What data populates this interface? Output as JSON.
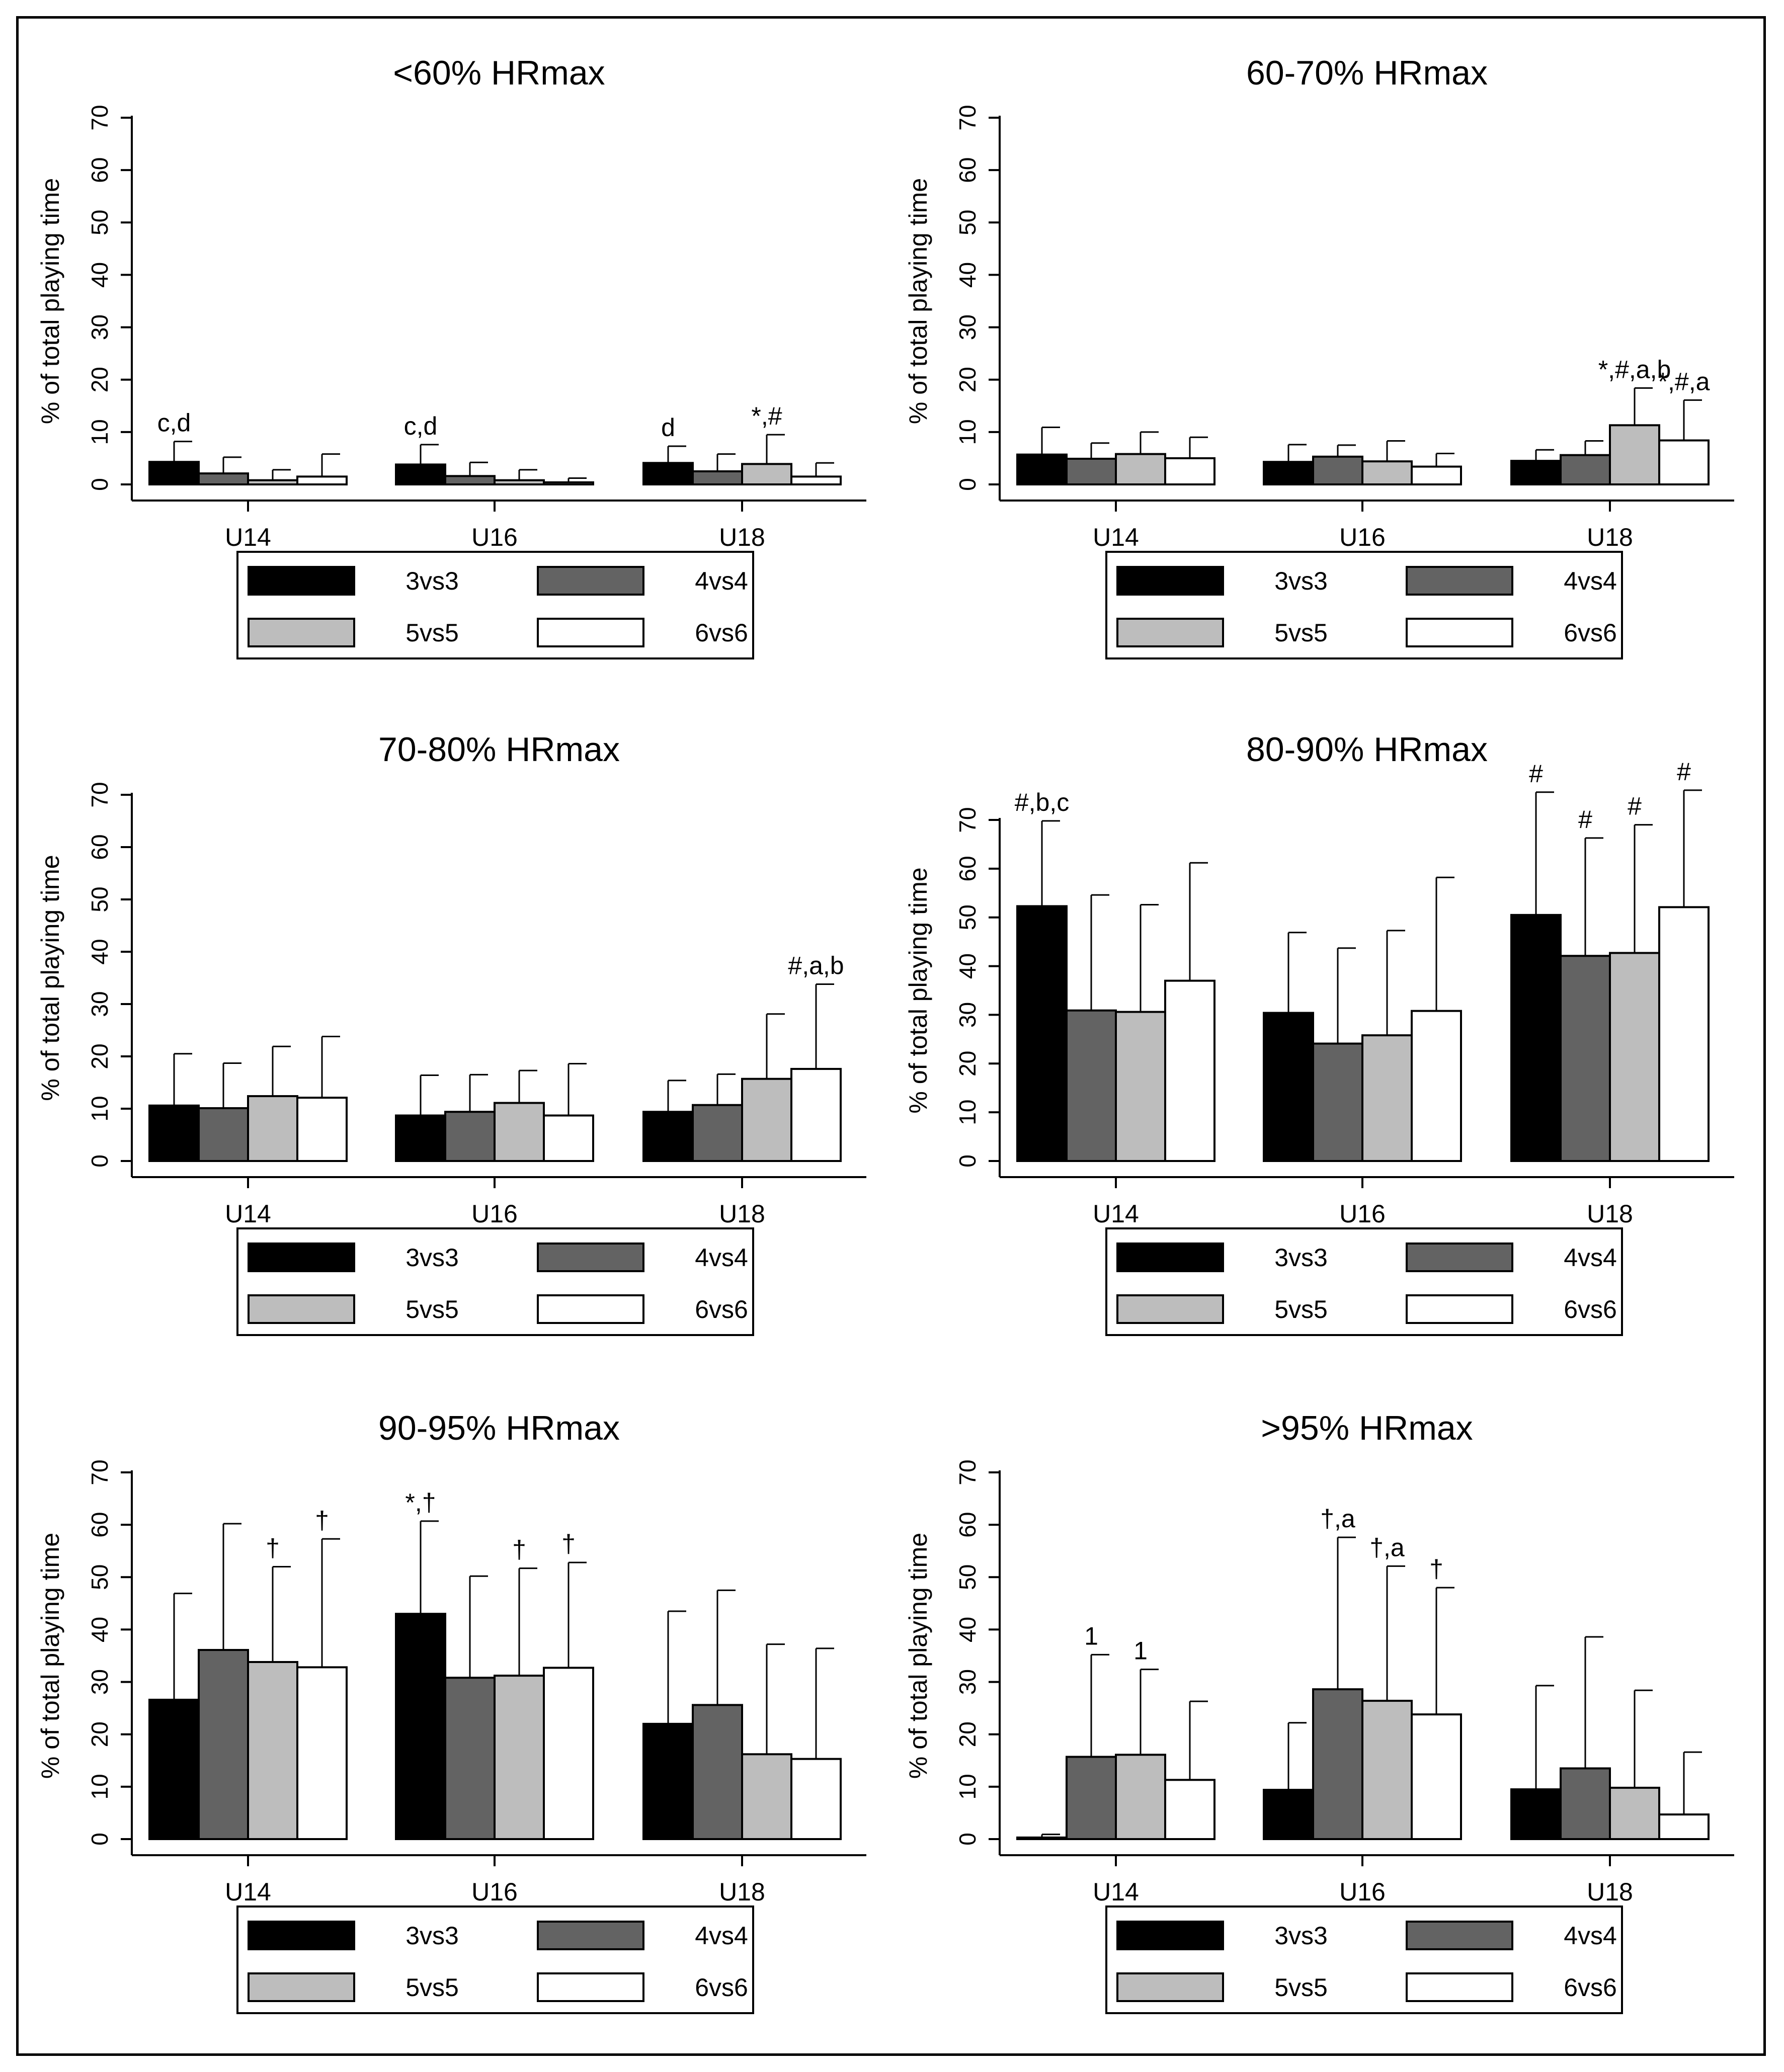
{
  "colors": {
    "3vs3": "#000000",
    "4vs4": "#636363",
    "5vs5": "#bdbdbd",
    "6vs6": "#ffffff",
    "axis": "#000000",
    "frame": "#000000"
  },
  "chart_data": [
    {
      "type": "bar",
      "title": "<60% HRmax",
      "ylabel": "% of total playing time",
      "xlabel": "",
      "ylim": [
        0,
        70
      ],
      "yticks": [
        "0",
        "10",
        "20",
        "30",
        "40",
        "50",
        "60",
        "70"
      ],
      "categories": [
        "U14",
        "U16",
        "U18"
      ],
      "legend": [
        "3vs3",
        "4vs4",
        "5vs5",
        "6vs6"
      ],
      "series": [
        {
          "name": "3vs3",
          "values": [
            4.3,
            3.8,
            4.1
          ],
          "errors": [
            8.2,
            7.6,
            7.3
          ],
          "annotations": [
            "c,d",
            "c,d",
            "d"
          ]
        },
        {
          "name": "4vs4",
          "values": [
            2.1,
            1.6,
            2.5
          ],
          "errors": [
            5.2,
            4.2,
            5.8
          ],
          "annotations": [
            "",
            "",
            ""
          ]
        },
        {
          "name": "5vs5",
          "values": [
            0.8,
            0.8,
            3.9
          ],
          "errors": [
            2.8,
            2.8,
            9.5
          ],
          "annotations": [
            "",
            "",
            "*,#"
          ]
        },
        {
          "name": "6vs6",
          "values": [
            1.5,
            0.4,
            1.5
          ],
          "errors": [
            5.8,
            1.2,
            4.1
          ],
          "annotations": [
            "",
            "",
            ""
          ]
        }
      ]
    },
    {
      "type": "bar",
      "title": "60-70% HRmax",
      "ylabel": "% of total playing time",
      "xlabel": "",
      "ylim": [
        0,
        70
      ],
      "yticks": [
        "0",
        "10",
        "20",
        "30",
        "40",
        "50",
        "60",
        "70"
      ],
      "categories": [
        "U14",
        "U16",
        "U18"
      ],
      "legend": [
        "3vs3",
        "4vs4",
        "5vs5",
        "6vs6"
      ],
      "series": [
        {
          "name": "3vs3",
          "values": [
            5.7,
            4.3,
            4.5
          ],
          "errors": [
            10.9,
            7.6,
            6.6
          ],
          "annotations": [
            "",
            "",
            ""
          ]
        },
        {
          "name": "4vs4",
          "values": [
            4.9,
            5.3,
            5.6
          ],
          "errors": [
            7.9,
            7.5,
            8.3
          ],
          "annotations": [
            "",
            "",
            ""
          ]
        },
        {
          "name": "5vs5",
          "values": [
            5.8,
            4.4,
            11.3
          ],
          "errors": [
            10.0,
            8.3,
            18.4
          ],
          "annotations": [
            "",
            "",
            "*,#,a,b"
          ]
        },
        {
          "name": "6vs6",
          "values": [
            5.0,
            3.4,
            8.4
          ],
          "errors": [
            9.0,
            5.9,
            16.1
          ],
          "annotations": [
            "",
            "",
            "*,#,a"
          ]
        }
      ]
    },
    {
      "type": "bar",
      "title": "70-80% HRmax",
      "ylabel": "% of total playing time",
      "xlabel": "",
      "ylim": [
        0,
        70
      ],
      "yticks": [
        "0",
        "10",
        "20",
        "30",
        "40",
        "50",
        "60",
        "70"
      ],
      "categories": [
        "U14",
        "U16",
        "U18"
      ],
      "legend": [
        "3vs3",
        "4vs4",
        "5vs5",
        "6vs6"
      ],
      "series": [
        {
          "name": "3vs3",
          "values": [
            10.6,
            8.7,
            9.4
          ],
          "errors": [
            20.5,
            16.4,
            15.4
          ],
          "annotations": [
            "",
            "",
            ""
          ]
        },
        {
          "name": "4vs4",
          "values": [
            10.1,
            9.4,
            10.7
          ],
          "errors": [
            18.7,
            16.5,
            16.6
          ],
          "annotations": [
            "",
            "",
            ""
          ]
        },
        {
          "name": "5vs5",
          "values": [
            12.4,
            11.1,
            15.7
          ],
          "errors": [
            21.9,
            17.3,
            28.1
          ],
          "annotations": [
            "",
            "",
            ""
          ]
        },
        {
          "name": "6vs6",
          "values": [
            12.1,
            8.7,
            17.6
          ],
          "errors": [
            23.8,
            18.6,
            33.8
          ],
          "annotations": [
            "",
            "",
            "#,a,b"
          ]
        }
      ]
    },
    {
      "type": "bar",
      "title": "80-90% HRmax",
      "ylabel": "% of total playing time",
      "xlabel": "",
      "ylim": [
        0,
        70
      ],
      "yticks": [
        "0",
        "10",
        "20",
        "30",
        "40",
        "50",
        "60",
        "70"
      ],
      "categories": [
        "U14",
        "U16",
        "U18"
      ],
      "legend": [
        "3vs3",
        "4vs4",
        "5vs5",
        "6vs6"
      ],
      "series": [
        {
          "name": "3vs3",
          "values": [
            52.3,
            30.4,
            50.5
          ],
          "errors": [
            69.8,
            46.9,
            75.7
          ],
          "annotations": [
            "#,b,c",
            "",
            "#"
          ]
        },
        {
          "name": "4vs4",
          "values": [
            30.9,
            24.1,
            42.1
          ],
          "errors": [
            54.6,
            43.7,
            66.3
          ],
          "annotations": [
            "",
            "",
            "#"
          ]
        },
        {
          "name": "5vs5",
          "values": [
            30.6,
            25.8,
            42.7
          ],
          "errors": [
            52.6,
            47.3,
            69.0
          ],
          "annotations": [
            "",
            "",
            "#"
          ]
        },
        {
          "name": "6vs6",
          "values": [
            37.0,
            30.8,
            52.1
          ],
          "errors": [
            61.2,
            58.2,
            76.1
          ],
          "annotations": [
            "",
            "",
            "#"
          ]
        }
      ]
    },
    {
      "type": "bar",
      "title": "90-95% HRmax",
      "ylabel": "% of total playing time",
      "xlabel": "",
      "ylim": [
        0,
        70
      ],
      "yticks": [
        "0",
        "10",
        "20",
        "30",
        "40",
        "50",
        "60",
        "70"
      ],
      "categories": [
        "U14",
        "U16",
        "U18"
      ],
      "legend": [
        "3vs3",
        "4vs4",
        "5vs5",
        "6vs6"
      ],
      "series": [
        {
          "name": "3vs3",
          "values": [
            26.6,
            43.0,
            22.0
          ],
          "errors": [
            46.9,
            60.7,
            43.5
          ],
          "annotations": [
            "",
            "*,†",
            ""
          ]
        },
        {
          "name": "4vs4",
          "values": [
            36.1,
            30.8,
            25.6
          ],
          "errors": [
            60.2,
            50.2,
            47.5
          ],
          "annotations": [
            "",
            "",
            ""
          ]
        },
        {
          "name": "5vs5",
          "values": [
            33.8,
            31.2,
            16.2
          ],
          "errors": [
            52.0,
            51.7,
            37.2
          ],
          "annotations": [
            "†",
            "†",
            ""
          ]
        },
        {
          "name": "6vs6",
          "values": [
            32.8,
            32.7,
            15.3
          ],
          "errors": [
            57.3,
            52.8,
            36.4
          ],
          "annotations": [
            "†",
            "†",
            ""
          ]
        }
      ]
    },
    {
      "type": "bar",
      "title": ">95% HRmax",
      "ylabel": "% of total playing time",
      "xlabel": "",
      "ylim": [
        0,
        70
      ],
      "yticks": [
        "0",
        "10",
        "20",
        "30",
        "40",
        "50",
        "60",
        "70"
      ],
      "categories": [
        "U14",
        "U16",
        "U18"
      ],
      "legend": [
        "3vs3",
        "4vs4",
        "5vs5",
        "6vs6"
      ],
      "series": [
        {
          "name": "3vs3",
          "values": [
            0.3,
            9.4,
            9.5
          ],
          "errors": [
            0.9,
            22.2,
            29.3
          ],
          "annotations": [
            "",
            "",
            ""
          ]
        },
        {
          "name": "4vs4",
          "values": [
            15.7,
            28.6,
            13.5
          ],
          "errors": [
            35.2,
            57.6,
            38.6
          ],
          "annotations": [
            "1",
            "†,a",
            ""
          ]
        },
        {
          "name": "5vs5",
          "values": [
            16.1,
            26.4,
            9.8
          ],
          "errors": [
            32.4,
            52.1,
            28.4
          ],
          "annotations": [
            "1",
            "†,a",
            ""
          ]
        },
        {
          "name": "6vs6",
          "values": [
            11.3,
            23.8,
            4.7
          ],
          "errors": [
            26.3,
            48.0,
            16.6
          ],
          "annotations": [
            "",
            "†",
            ""
          ]
        }
      ]
    }
  ]
}
